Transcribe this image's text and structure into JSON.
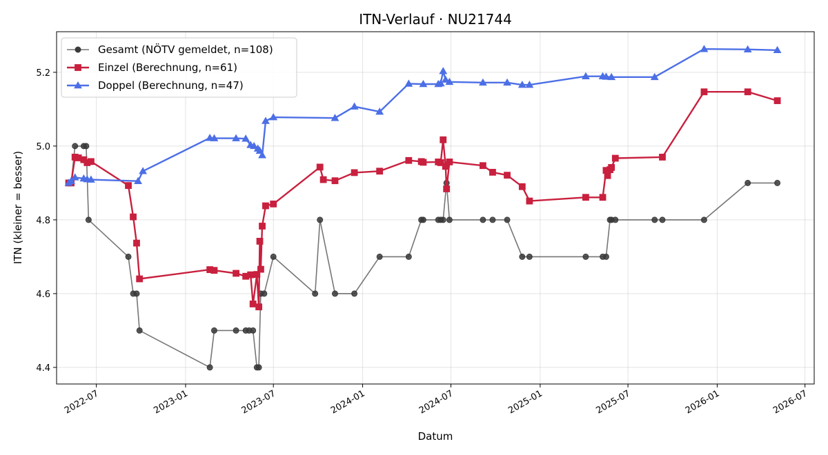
{
  "chart_data": {
    "type": "line",
    "title": "ITN-Verlauf · NU21744",
    "xlabel": "Datum",
    "ylabel": "ITN  (kleiner = besser)",
    "xlim": [
      "2022-04-10",
      "2026-07-20"
    ],
    "ylim": [
      4.355,
      5.31
    ],
    "x_ticks": [
      "2022-07",
      "2023-01",
      "2023-07",
      "2024-01",
      "2024-07",
      "2025-01",
      "2025-07",
      "2026-01",
      "2026-07"
    ],
    "y_ticks": [
      "4.4",
      "4.6",
      "4.8",
      "5.0",
      "5.2"
    ],
    "grid": true,
    "legend_position": "top-left",
    "series": [
      {
        "name": "Gesamt (NÖTV gemeldet, n=108)",
        "color": "#3a3a3a",
        "marker": "circle",
        "points": [
          [
            "2022-05-05",
            4.9
          ],
          [
            "2022-05-10",
            4.9
          ],
          [
            "2022-05-18",
            5.0
          ],
          [
            "2022-06-05",
            5.0
          ],
          [
            "2022-06-10",
            5.0
          ],
          [
            "2022-06-15",
            4.8
          ],
          [
            "2022-09-05",
            4.7
          ],
          [
            "2022-09-15",
            4.6
          ],
          [
            "2022-09-22",
            4.6
          ],
          [
            "2022-09-28",
            4.5
          ],
          [
            "2023-02-20",
            4.4
          ],
          [
            "2023-03-01",
            4.5
          ],
          [
            "2023-04-15",
            4.5
          ],
          [
            "2023-05-05",
            4.5
          ],
          [
            "2023-05-12",
            4.5
          ],
          [
            "2023-05-20",
            4.5
          ],
          [
            "2023-05-28",
            4.4
          ],
          [
            "2023-06-01",
            4.4
          ],
          [
            "2023-06-05",
            4.6
          ],
          [
            "2023-06-12",
            4.6
          ],
          [
            "2023-07-01",
            4.7
          ],
          [
            "2023-09-25",
            4.6
          ],
          [
            "2023-10-05",
            4.8
          ],
          [
            "2023-11-05",
            4.6
          ],
          [
            "2023-12-15",
            4.6
          ],
          [
            "2024-02-05",
            4.7
          ],
          [
            "2024-04-05",
            4.7
          ],
          [
            "2024-05-01",
            4.8
          ],
          [
            "2024-05-05",
            4.8
          ],
          [
            "2024-06-05",
            4.8
          ],
          [
            "2024-06-10",
            4.8
          ],
          [
            "2024-06-15",
            4.8
          ],
          [
            "2024-06-22",
            4.9
          ],
          [
            "2024-06-28",
            4.8
          ],
          [
            "2024-09-05",
            4.8
          ],
          [
            "2024-09-25",
            4.8
          ],
          [
            "2024-10-25",
            4.8
          ],
          [
            "2024-11-25",
            4.7
          ],
          [
            "2024-12-10",
            4.7
          ],
          [
            "2025-04-05",
            4.7
          ],
          [
            "2025-05-10",
            4.7
          ],
          [
            "2025-05-17",
            4.7
          ],
          [
            "2025-05-25",
            4.8
          ],
          [
            "2025-05-28",
            4.8
          ],
          [
            "2025-06-05",
            4.8
          ],
          [
            "2025-08-25",
            4.8
          ],
          [
            "2025-09-10",
            4.8
          ],
          [
            "2025-12-05",
            4.8
          ],
          [
            "2026-03-05",
            4.9
          ],
          [
            "2026-05-05",
            4.9
          ]
        ]
      },
      {
        "name": "Einzel (Berechnung, n=61)",
        "color": "#c8203e",
        "marker": "square",
        "points": [
          [
            "2022-05-05",
            4.9
          ],
          [
            "2022-05-10",
            4.9
          ],
          [
            "2022-05-18",
            4.97
          ],
          [
            "2022-05-25",
            4.968
          ],
          [
            "2022-06-05",
            4.963
          ],
          [
            "2022-06-12",
            4.955
          ],
          [
            "2022-06-20",
            4.958
          ],
          [
            "2022-09-05",
            4.893
          ],
          [
            "2022-09-15",
            4.808
          ],
          [
            "2022-09-22",
            4.737
          ],
          [
            "2022-09-28",
            4.64
          ],
          [
            "2023-02-20",
            4.665
          ],
          [
            "2023-03-01",
            4.663
          ],
          [
            "2023-04-15",
            4.655
          ],
          [
            "2023-05-05",
            4.647
          ],
          [
            "2023-05-15",
            4.651
          ],
          [
            "2023-05-20",
            4.572
          ],
          [
            "2023-05-28",
            4.652
          ],
          [
            "2023-06-01",
            4.564
          ],
          [
            "2023-06-03",
            4.742
          ],
          [
            "2023-06-05",
            4.666
          ],
          [
            "2023-06-08",
            4.783
          ],
          [
            "2023-06-15",
            4.838
          ],
          [
            "2023-07-01",
            4.843
          ],
          [
            "2023-10-05",
            4.943
          ],
          [
            "2023-10-12",
            4.909
          ],
          [
            "2023-11-05",
            4.906
          ],
          [
            "2023-12-15",
            4.928
          ],
          [
            "2024-02-05",
            4.932
          ],
          [
            "2024-04-05",
            4.961
          ],
          [
            "2024-05-01",
            4.958
          ],
          [
            "2024-05-05",
            4.956
          ],
          [
            "2024-06-05",
            4.957
          ],
          [
            "2024-06-10",
            4.955
          ],
          [
            "2024-06-15",
            5.017
          ],
          [
            "2024-06-20",
            4.945
          ],
          [
            "2024-06-22",
            4.884
          ],
          [
            "2024-06-28",
            4.957
          ],
          [
            "2024-09-05",
            4.947
          ],
          [
            "2024-09-25",
            4.929
          ],
          [
            "2024-10-25",
            4.921
          ],
          [
            "2024-11-25",
            4.89
          ],
          [
            "2024-12-10",
            4.851
          ],
          [
            "2025-04-05",
            4.861
          ],
          [
            "2025-05-10",
            4.861
          ],
          [
            "2025-05-17",
            4.934
          ],
          [
            "2025-05-20",
            4.92
          ],
          [
            "2025-05-25",
            4.936
          ],
          [
            "2025-05-28",
            4.942
          ],
          [
            "2025-06-05",
            4.967
          ],
          [
            "2025-09-10",
            4.97
          ],
          [
            "2025-12-05",
            5.147
          ],
          [
            "2026-03-05",
            5.147
          ],
          [
            "2026-05-05",
            5.123
          ]
        ]
      },
      {
        "name": "Doppel (Berechnung, n=47)",
        "color": "#4c6fe6",
        "marker": "triangle",
        "points": [
          [
            "2022-05-05",
            4.9
          ],
          [
            "2022-05-10",
            4.905
          ],
          [
            "2022-05-18",
            4.915
          ],
          [
            "2022-06-05",
            4.912
          ],
          [
            "2022-06-12",
            4.91
          ],
          [
            "2022-06-20",
            4.909
          ],
          [
            "2022-09-25",
            4.905
          ],
          [
            "2022-10-05",
            4.932
          ],
          [
            "2023-02-20",
            5.022
          ],
          [
            "2023-03-01",
            5.021
          ],
          [
            "2023-04-15",
            5.021
          ],
          [
            "2023-05-05",
            5.02
          ],
          [
            "2023-05-15",
            5.003
          ],
          [
            "2023-05-22",
            5.0
          ],
          [
            "2023-05-30",
            4.993
          ],
          [
            "2023-06-03",
            4.987
          ],
          [
            "2023-06-08",
            4.975
          ],
          [
            "2023-06-15",
            5.068
          ],
          [
            "2023-07-01",
            5.078
          ],
          [
            "2023-11-05",
            5.076
          ],
          [
            "2023-12-15",
            5.107
          ],
          [
            "2024-02-05",
            5.093
          ],
          [
            "2024-04-05",
            5.169
          ],
          [
            "2024-05-05",
            5.168
          ],
          [
            "2024-06-05",
            5.168
          ],
          [
            "2024-06-10",
            5.17
          ],
          [
            "2024-06-15",
            5.203
          ],
          [
            "2024-06-20",
            5.18
          ],
          [
            "2024-06-28",
            5.174
          ],
          [
            "2024-09-05",
            5.172
          ],
          [
            "2024-10-25",
            5.172
          ],
          [
            "2024-11-25",
            5.166
          ],
          [
            "2024-12-10",
            5.166
          ],
          [
            "2025-04-05",
            5.189
          ],
          [
            "2025-05-10",
            5.189
          ],
          [
            "2025-05-17",
            5.188
          ],
          [
            "2025-05-28",
            5.187
          ],
          [
            "2025-08-25",
            5.187
          ],
          [
            "2025-12-05",
            5.263
          ],
          [
            "2026-03-05",
            5.262
          ],
          [
            "2026-05-05",
            5.26
          ]
        ]
      }
    ]
  }
}
